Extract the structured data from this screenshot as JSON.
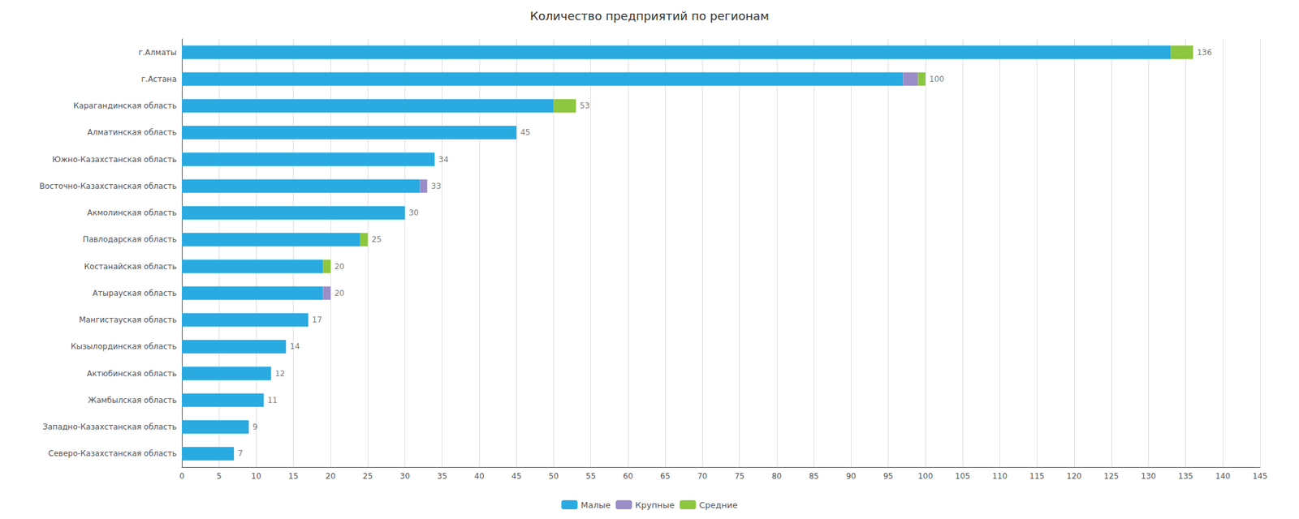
{
  "chart_data": {
    "type": "bar",
    "orientation": "horizontal",
    "stacked": true,
    "title": "Количество предприятий по регионам",
    "categories": [
      "г.Алматы",
      "г.Астана",
      "Карагандинская область",
      "Алматинская область",
      "Южно-Казахстанская область",
      "Восточно-Казахстанская область",
      "Акмолинская область",
      "Павлодарская область",
      "Костанайская область",
      "Атырауская область",
      "Мангистауская область",
      "Кызылординская область",
      "Актюбинская область",
      "Жамбылская область",
      "Западно-Казахстанская область",
      "Северо-Казахстанская область"
    ],
    "series": [
      {
        "name": "Малые",
        "color": "#29ABE2",
        "values": [
          133,
          97,
          50,
          45,
          34,
          32,
          30,
          24,
          19,
          19,
          17,
          14,
          12,
          11,
          9,
          7
        ]
      },
      {
        "name": "Крупные",
        "color": "#9B8DC8",
        "values": [
          0,
          2,
          0,
          0,
          0,
          1,
          0,
          0,
          0,
          1,
          0,
          0,
          0,
          0,
          0,
          0
        ]
      },
      {
        "name": "Средние",
        "color": "#8DC63F",
        "values": [
          3,
          1,
          3,
          0,
          0,
          0,
          0,
          1,
          1,
          0,
          0,
          0,
          0,
          0,
          0,
          0
        ]
      }
    ],
    "totals": [
      136,
      100,
      53,
      45,
      34,
      33,
      30,
      25,
      20,
      20,
      17,
      14,
      12,
      11,
      9,
      7
    ],
    "xlim": [
      0,
      145
    ],
    "xticks": [
      0,
      5,
      10,
      15,
      20,
      25,
      30,
      35,
      40,
      45,
      50,
      55,
      60,
      65,
      70,
      75,
      80,
      85,
      90,
      95,
      100,
      105,
      110,
      115,
      120,
      125,
      130,
      135,
      140,
      145
    ],
    "grid": true,
    "legend": "bottom"
  }
}
